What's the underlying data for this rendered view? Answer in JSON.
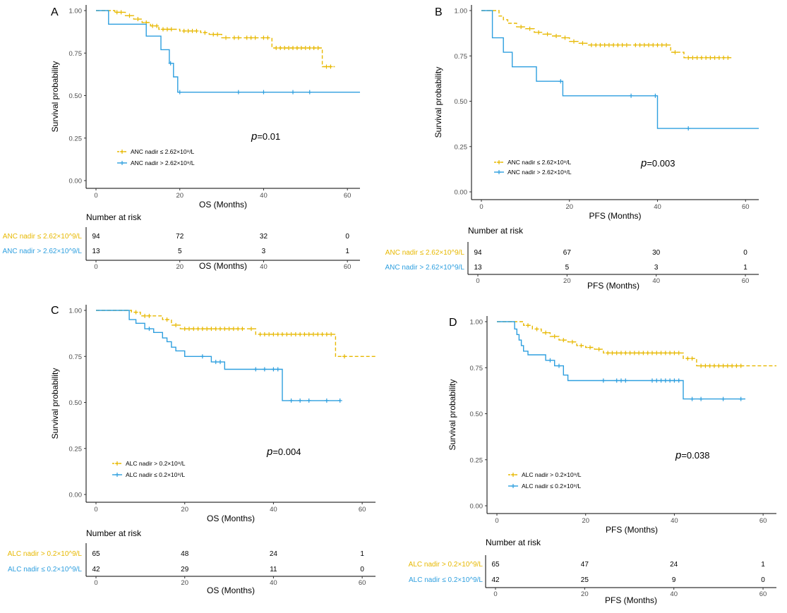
{
  "colors": {
    "group1": "#E7B800",
    "group2": "#2E9FDF",
    "axis": "#000000"
  },
  "panels": [
    {
      "letter": "A",
      "xlabel": "OS (Months)",
      "ylabel": "Survival probability",
      "p_italic": "p",
      "p_value": "=0.01",
      "risk_title": "Number at risk",
      "risk_xlabel": "OS (Months)",
      "x_ticks": [
        "0",
        "20",
        "40",
        "60"
      ],
      "y_ticks": [
        "0.00",
        "0.25",
        "0.50",
        "0.75",
        "1.00"
      ],
      "series": [
        {
          "name": "ANC nadir ≤ 2.62×10^9/L",
          "legend": "ANC nadir ≤ 2.62×10⁹/L",
          "risk": [
            "94",
            "72",
            "32",
            "0"
          ]
        },
        {
          "name": "ANC nadir > 2.62×10^9/L",
          "legend": "ANC nadir > 2.62×10⁹/L",
          "risk": [
            "13",
            "5",
            "3",
            "1"
          ]
        }
      ]
    },
    {
      "letter": "B",
      "xlabel": "PFS (Months)",
      "ylabel": "Survival probability",
      "p_italic": "p",
      "p_value": "=0.003",
      "risk_title": "Number at risk",
      "risk_xlabel": "PFS (Months)",
      "x_ticks": [
        "0",
        "20",
        "40",
        "60"
      ],
      "y_ticks": [
        "0.00",
        "0.25",
        "0.50",
        "0.75",
        "1.00"
      ],
      "series": [
        {
          "name": "ANC nadir ≤ 2.62×10^9/L",
          "legend": "ANC nadir ≤ 2.62×10⁹/L",
          "risk": [
            "94",
            "67",
            "30",
            "0"
          ]
        },
        {
          "name": "ANC nadir > 2.62×10^9/L",
          "legend": "ANC nadir > 2.62×10⁹/L",
          "risk": [
            "13",
            "5",
            "3",
            "1"
          ]
        }
      ]
    },
    {
      "letter": "C",
      "xlabel": "OS (Months)",
      "ylabel": "Survival probability",
      "p_italic": "p",
      "p_value": "=0.004",
      "risk_title": "Number at risk",
      "risk_xlabel": "OS (Months)",
      "x_ticks": [
        "0",
        "20",
        "40",
        "60"
      ],
      "y_ticks": [
        "0.00",
        "0.25",
        "0.50",
        "0.75",
        "1.00"
      ],
      "series": [
        {
          "name": "ALC nadir > 0.2×10^9/L",
          "legend": "ALC nadir > 0.2×10⁹/L",
          "risk": [
            "65",
            "48",
            "24",
            "1"
          ]
        },
        {
          "name": "ALC nadir ≤ 0.2×10^9/L",
          "legend": "ALC nadir ≤ 0.2×10⁹/L",
          "risk": [
            "42",
            "29",
            "11",
            "0"
          ]
        }
      ]
    },
    {
      "letter": "D",
      "xlabel": "PFS (Months)",
      "ylabel": "Survival probability",
      "p_italic": "p",
      "p_value": "=0.038",
      "risk_title": "Number at risk",
      "risk_xlabel": "PFS (Months)",
      "x_ticks": [
        "0",
        "20",
        "40",
        "60"
      ],
      "y_ticks": [
        "0.00",
        "0.25",
        "0.50",
        "0.75",
        "1.00"
      ],
      "series": [
        {
          "name": "ALC nadir > 0.2×10^9/L",
          "legend": "ALC nadir > 0.2×10⁹/L",
          "risk": [
            "65",
            "47",
            "24",
            "1"
          ]
        },
        {
          "name": "ALC nadir ≤ 0.2×10^9/L",
          "legend": "ALC nadir ≤ 0.2×10⁹/L",
          "risk": [
            "42",
            "25",
            "9",
            "0"
          ]
        }
      ]
    }
  ],
  "chart_data": [
    {
      "type": "line",
      "title": "",
      "xlabel": "OS (Months)",
      "ylabel": "Survival probability",
      "xlim": [
        0,
        63
      ],
      "ylim": [
        0,
        1
      ],
      "series": [
        {
          "name": "ANC nadir ≤ 2.62×10^9/L",
          "x": [
            0,
            4.5,
            7,
            9,
            11,
            13,
            15,
            20,
            25,
            27,
            30,
            42,
            54,
            57
          ],
          "y": [
            1.0,
            0.99,
            0.97,
            0.95,
            0.93,
            0.91,
            0.89,
            0.88,
            0.87,
            0.86,
            0.84,
            0.78,
            0.67,
            0.67
          ],
          "censor_x": [
            5,
            6,
            8,
            10,
            12,
            13.5,
            14.5,
            16,
            17,
            18,
            21,
            22,
            23,
            24,
            26,
            28,
            29,
            31,
            33,
            34,
            36,
            37,
            38,
            40,
            41,
            43,
            44,
            45,
            46,
            47,
            48,
            49,
            50,
            51,
            52,
            53,
            55,
            56
          ]
        },
        {
          "name": "ANC nadir > 2.62×10^9/L",
          "x": [
            0,
            3,
            12,
            15.5,
            17.5,
            18.5,
            19.5,
            63
          ],
          "y": [
            1.0,
            0.92,
            0.85,
            0.77,
            0.69,
            0.61,
            0.52,
            0.52
          ],
          "censor_x": [
            17.8,
            20,
            34,
            40,
            47,
            51
          ]
        }
      ]
    },
    {
      "type": "line",
      "title": "",
      "xlabel": "PFS (Months)",
      "ylabel": "Survival probability",
      "xlim": [
        0,
        63
      ],
      "ylim": [
        0,
        1
      ],
      "series": [
        {
          "name": "ANC nadir ≤ 2.62×10^9/L",
          "x": [
            0,
            4,
            5,
            6,
            8,
            10,
            12,
            14,
            16,
            18,
            20,
            22,
            24,
            43,
            46,
            57
          ],
          "y": [
            1.0,
            0.97,
            0.95,
            0.93,
            0.91,
            0.9,
            0.88,
            0.87,
            0.86,
            0.85,
            0.83,
            0.82,
            0.81,
            0.77,
            0.74,
            0.74
          ],
          "censor_x": [
            9,
            11,
            13,
            15,
            17,
            19,
            21,
            23,
            25,
            26,
            27,
            28,
            29,
            30,
            31,
            32,
            33,
            35,
            36,
            37,
            38,
            39,
            40,
            41,
            42,
            44,
            47,
            48,
            49,
            50,
            51,
            52,
            53,
            54,
            55,
            56
          ]
        },
        {
          "name": "ANC nadir > 2.62×10^9/L",
          "x": [
            0,
            2.5,
            5,
            7,
            12.5,
            18.5,
            40,
            63
          ],
          "y": [
            1.0,
            0.85,
            0.77,
            0.69,
            0.61,
            0.53,
            0.35,
            0.35
          ],
          "censor_x": [
            18,
            34,
            39.5,
            47
          ]
        }
      ]
    },
    {
      "type": "line",
      "title": "",
      "xlabel": "OS (Months)",
      "ylabel": "Survival probability",
      "xlim": [
        0,
        63
      ],
      "ylim": [
        0,
        1
      ],
      "series": [
        {
          "name": "ALC nadir > 0.2×10^9/L",
          "x": [
            0,
            8,
            10,
            15,
            17,
            19,
            36,
            54,
            63
          ],
          "y": [
            1.0,
            0.99,
            0.97,
            0.95,
            0.92,
            0.9,
            0.87,
            0.75,
            0.75
          ],
          "censor_x": [
            9,
            11,
            12,
            16,
            18,
            20,
            21,
            22,
            23,
            24,
            25,
            26,
            27,
            28,
            29,
            30,
            31,
            32,
            33,
            35,
            37,
            38,
            39,
            40,
            41,
            42,
            43,
            44,
            45,
            46,
            47,
            48,
            49,
            50,
            51,
            52,
            53,
            56
          ]
        },
        {
          "name": "ALC nadir ≤ 0.2×10^9/L",
          "x": [
            0,
            7.5,
            9,
            11,
            13,
            15,
            16,
            17,
            18,
            20,
            26,
            29,
            42,
            55
          ],
          "y": [
            1.0,
            0.95,
            0.93,
            0.9,
            0.88,
            0.85,
            0.83,
            0.8,
            0.78,
            0.75,
            0.72,
            0.68,
            0.51,
            0.51
          ],
          "censor_x": [
            12,
            24,
            27,
            28,
            36,
            38,
            40,
            41,
            44,
            46,
            48,
            52,
            55
          ]
        }
      ]
    },
    {
      "type": "line",
      "title": "",
      "xlabel": "PFS (Months)",
      "ylabel": "Survival probability",
      "xlim": [
        0,
        63
      ],
      "ylim": [
        0,
        1
      ],
      "series": [
        {
          "name": "ALC nadir > 0.2×10^9/L",
          "x": [
            0,
            6,
            8,
            10,
            12,
            14,
            16,
            18,
            20,
            22,
            24,
            42,
            45,
            63
          ],
          "y": [
            1.0,
            0.98,
            0.96,
            0.94,
            0.92,
            0.9,
            0.89,
            0.87,
            0.86,
            0.85,
            0.83,
            0.8,
            0.76,
            0.76
          ],
          "censor_x": [
            7,
            9,
            11,
            13,
            15,
            17,
            19,
            21,
            23,
            25,
            26,
            27,
            28,
            29,
            30,
            31,
            32,
            33,
            34,
            35,
            36,
            37,
            38,
            39,
            40,
            41,
            43,
            44,
            46,
            47,
            48,
            49,
            50,
            51,
            52,
            53,
            54,
            55
          ]
        },
        {
          "name": "ALC nadir ≤ 0.2×10^9/L",
          "x": [
            0,
            4,
            4.5,
            5,
            5.5,
            6,
            7,
            11,
            13,
            15,
            16,
            42,
            56
          ],
          "y": [
            1.0,
            0.96,
            0.93,
            0.9,
            0.87,
            0.84,
            0.82,
            0.79,
            0.76,
            0.71,
            0.68,
            0.58,
            0.58
          ],
          "censor_x": [
            12,
            14,
            24,
            27,
            28,
            29,
            35,
            36,
            37,
            38,
            39,
            40,
            41,
            44,
            46,
            51,
            55
          ]
        }
      ]
    }
  ]
}
